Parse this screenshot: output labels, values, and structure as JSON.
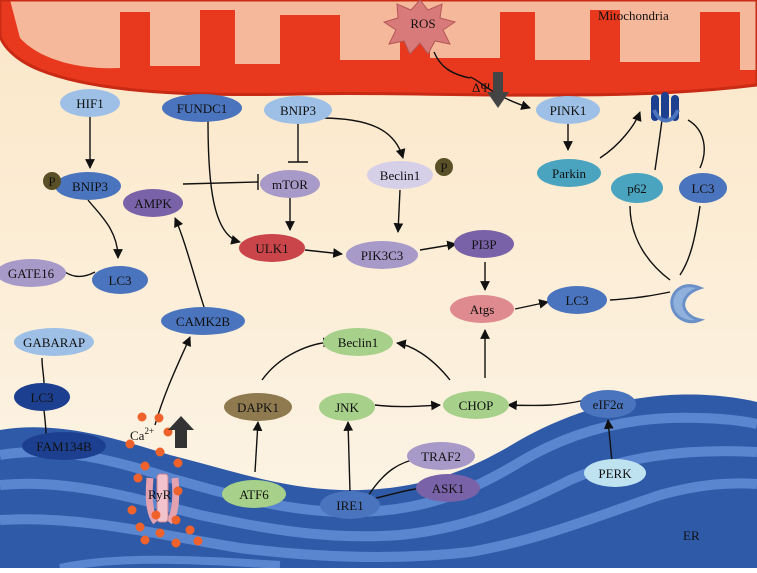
{
  "regions": {
    "mitochondria": "Mitochondria",
    "er": "ER"
  },
  "stress": {
    "ros": "ROS",
    "delta_psi": "ΔΨ",
    "calcium_base": "Ca",
    "calcium_sup": "2+"
  },
  "nodes": {
    "hif1": "HIF1",
    "fundc1": "FUNDC1",
    "bnip3_top": "BNIP3",
    "pink1": "PINK1",
    "bnip3_left": "BNIP3",
    "ampk": "AMPK",
    "mtor": "mTOR",
    "beclin1_top": "Beclin1",
    "parkin": "Parkin",
    "p62": "p62",
    "lc3_right": "LC3",
    "ulk1": "ULK1",
    "pik3c3": "PIK3C3",
    "pi3p": "PI3P",
    "gate16": "GATE16",
    "lc3_left": "LC3",
    "atgs": "Atgs",
    "lc3_mid": "LC3",
    "camk2b": "CAMK2B",
    "gabarap": "GABARAP",
    "beclin1_mid": "Beclin1",
    "lc3_er": "LC3",
    "dapk1": "DAPK1",
    "jnk": "JNK",
    "chop": "CHOP",
    "eif2a": "eIF2α",
    "fam134b": "FAM134B",
    "traf2": "TRAF2",
    "ask1": "ASK1",
    "perk": "PERK",
    "atf6": "ATF6",
    "ire1": "IRE1",
    "ryr": "RyR",
    "phospho_a": "P",
    "phospho_b": "P"
  },
  "colors": {
    "mito_outer": "#e8391f",
    "mito_inner": "#fbd3b5",
    "cytoplasm": "#fcedd2",
    "er_fill": "#2f5aa8",
    "er_light": "#5a86cf",
    "node_blue": "#4a74bd",
    "node_light_blue": "#9ec0e6",
    "node_purple": "#7a62a8",
    "node_lavender": "#a79ac8",
    "node_red": "#c9454a",
    "node_pink": "#de8a8e",
    "node_olive": "#8e7a4e",
    "node_green": "#a7d08a",
    "node_teal": "#4ba4bf",
    "node_light_teal": "#bfe2f1",
    "node_dark_blue": "#1d3f8f",
    "phospho": "#5a5027",
    "calcium": "#f0622b",
    "ros": "#d97a7a"
  }
}
